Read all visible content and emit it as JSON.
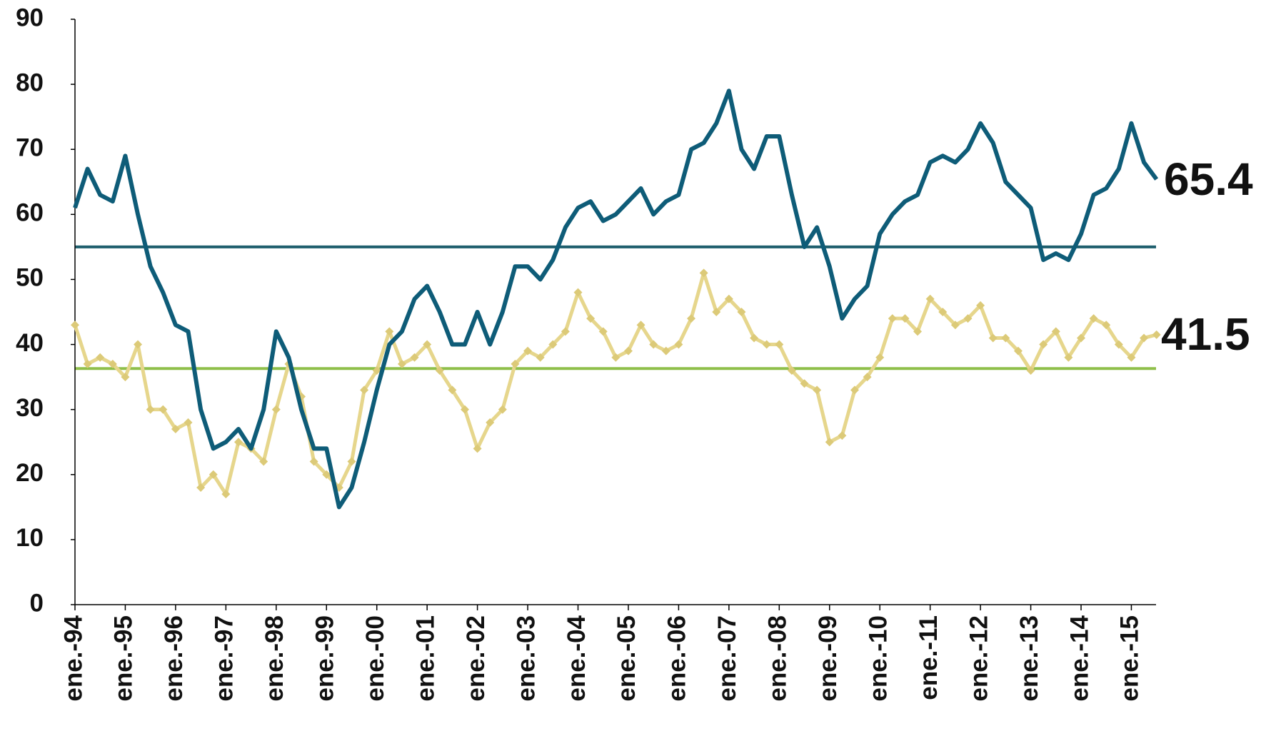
{
  "chart_data": {
    "type": "line",
    "categories": [
      "ene.-94",
      null,
      null,
      null,
      "ene.-95",
      null,
      null,
      null,
      "ene.-96",
      null,
      null,
      null,
      "ene.-97",
      null,
      null,
      null,
      "ene.-98",
      null,
      null,
      null,
      "ene.-99",
      null,
      null,
      null,
      "ene.-00",
      null,
      null,
      null,
      "ene.-01",
      null,
      null,
      null,
      "ene.-02",
      null,
      null,
      null,
      "ene.-03",
      null,
      null,
      null,
      "ene.-04",
      null,
      null,
      null,
      "ene.-05",
      null,
      null,
      null,
      "ene.-06",
      null,
      null,
      null,
      "ene.-07",
      null,
      null,
      null,
      "ene.-08",
      null,
      null,
      null,
      "ene.-09",
      null,
      null,
      null,
      "ene.-10",
      null,
      null,
      null,
      "ene.-11",
      null,
      null,
      null,
      "ene.-12",
      null,
      null,
      null,
      "ene.-13",
      null,
      null,
      null,
      "ene.-14",
      null,
      null,
      null,
      "ene.-15",
      null,
      null
    ],
    "series": [
      {
        "color": "#0e5c78",
        "marker": "none",
        "values": [
          61,
          67,
          63,
          62,
          69,
          60,
          52,
          48,
          43,
          42,
          30,
          24,
          25,
          27,
          24,
          30,
          42,
          38,
          30,
          24,
          24,
          15,
          18,
          25,
          33,
          40,
          42,
          47,
          49,
          45,
          40,
          40,
          45,
          40,
          45,
          52,
          52,
          50,
          53,
          58,
          61,
          62,
          59,
          60,
          62,
          64,
          60,
          62,
          63,
          70,
          71,
          74,
          79,
          70,
          67,
          72,
          72,
          63,
          55,
          58,
          52,
          44,
          47,
          49,
          57,
          60,
          62,
          63,
          68,
          69,
          68,
          70,
          74,
          71,
          65,
          63,
          61,
          53,
          54,
          53,
          57,
          63,
          64,
          67,
          74,
          68,
          65.4
        ]
      },
      {
        "color": "#e6d68c",
        "marker": "diamond",
        "values": [
          43,
          37,
          38,
          37,
          35,
          40,
          30,
          30,
          27,
          28,
          18,
          20,
          17,
          25,
          24,
          22,
          30,
          37,
          32,
          22,
          20,
          18,
          22,
          33,
          36,
          42,
          37,
          38,
          40,
          36,
          33,
          30,
          24,
          28,
          30,
          37,
          39,
          38,
          40,
          42,
          48,
          44,
          42,
          38,
          39,
          43,
          40,
          39,
          40,
          44,
          51,
          45,
          47,
          45,
          41,
          40,
          40,
          36,
          34,
          33,
          25,
          26,
          33,
          35,
          38,
          44,
          44,
          42,
          47,
          45,
          43,
          44,
          46,
          41,
          41,
          39,
          36,
          40,
          42,
          38,
          41,
          44,
          43,
          40,
          38,
          41,
          41.5
        ]
      }
    ],
    "reference_lines": [
      {
        "value": 55,
        "color": "#1f5f6e"
      },
      {
        "value": 36.3,
        "color": "#8fbf4a"
      }
    ],
    "annotations": [
      {
        "text": "65.4",
        "color": "#1b2a4a"
      },
      {
        "text": "41.5",
        "color": "#e07a1f"
      }
    ],
    "ylim": [
      0,
      90
    ],
    "yticks": [
      0,
      10,
      20,
      30,
      40,
      50,
      60,
      70,
      80,
      90
    ],
    "grid": false
  }
}
